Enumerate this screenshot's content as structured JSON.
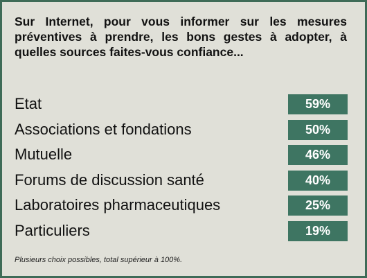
{
  "chart_data": {
    "type": "table",
    "title": "Sur Internet, pour vous informer sur les mesures préventives à prendre, les bons gestes à adopter, à quelles sources faites-vous confiance...",
    "categories": [
      "Etat",
      "Associations et fondations",
      "Mutuelle",
      "Forums de discussion santé",
      "Laboratoires pharmaceutiques",
      "Particuliers"
    ],
    "values": [
      59,
      50,
      46,
      40,
      25,
      19
    ],
    "value_labels": [
      "59%",
      "50%",
      "46%",
      "40%",
      "25%",
      "19%"
    ],
    "unit": "%",
    "footnote": "Plusieurs choix possibles, total supérieur à 100%.",
    "colors": {
      "frame": "#3e6b57",
      "background": "#e0e0d8",
      "badge": "#3e7562",
      "badge_text": "#ffffff"
    }
  }
}
